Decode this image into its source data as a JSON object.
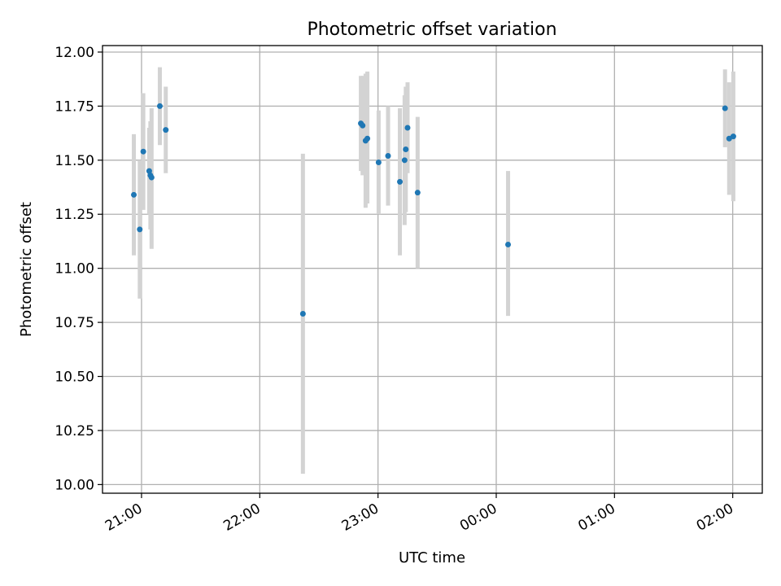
{
  "chart_data": {
    "type": "scatter",
    "title": "Photometric offset variation",
    "xlabel": "UTC time",
    "ylabel": "Photometric offset",
    "x_axis": "time",
    "xlim_hours": [
      20.67,
      26.25
    ],
    "ylim": [
      9.96,
      12.03
    ],
    "grid": true,
    "x_ticks": [
      {
        "hour": 21,
        "label": "21:00"
      },
      {
        "hour": 22,
        "label": "22:00"
      },
      {
        "hour": 23,
        "label": "23:00"
      },
      {
        "hour": 24,
        "label": "00:00"
      },
      {
        "hour": 25,
        "label": "01:00"
      },
      {
        "hour": 26,
        "label": "02:00"
      }
    ],
    "y_ticks": [
      {
        "value": 10.0,
        "label": "10.00"
      },
      {
        "value": 10.25,
        "label": "10.25"
      },
      {
        "value": 10.5,
        "label": "10.50"
      },
      {
        "value": 10.75,
        "label": "10.75"
      },
      {
        "value": 11.0,
        "label": "11.00"
      },
      {
        "value": 11.25,
        "label": "11.25"
      },
      {
        "value": 11.5,
        "label": "11.50"
      },
      {
        "value": 11.75,
        "label": "11.75"
      },
      {
        "value": 12.0,
        "label": "12.00"
      }
    ],
    "colors": {
      "point": "#1f77b4",
      "error_bar": "#d3d3d3",
      "grid": "#b0b0b0"
    },
    "points": [
      {
        "t": "20:56",
        "hour": 20.935,
        "y": 11.34,
        "ylo": 11.06,
        "yhi": 11.62
      },
      {
        "t": "20:59",
        "hour": 20.985,
        "y": 11.18,
        "ylo": 10.86,
        "yhi": 11.5
      },
      {
        "t": "21:01",
        "hour": 21.015,
        "y": 11.54,
        "ylo": 11.27,
        "yhi": 11.81
      },
      {
        "t": "21:04",
        "hour": 21.065,
        "y": 11.45,
        "ylo": 11.25,
        "yhi": 11.65
      },
      {
        "t": "21:04",
        "hour": 21.075,
        "y": 11.43,
        "ylo": 11.18,
        "yhi": 11.68
      },
      {
        "t": "21:05",
        "hour": 21.085,
        "y": 11.42,
        "ylo": 11.09,
        "yhi": 11.74
      },
      {
        "t": "21:09",
        "hour": 21.155,
        "y": 11.75,
        "ylo": 11.57,
        "yhi": 11.93
      },
      {
        "t": "21:12",
        "hour": 21.205,
        "y": 11.64,
        "ylo": 11.44,
        "yhi": 11.84
      },
      {
        "t": "22:22",
        "hour": 22.365,
        "y": 10.79,
        "ylo": 10.05,
        "yhi": 11.53
      },
      {
        "t": "22:51",
        "hour": 22.855,
        "y": 11.67,
        "ylo": 11.45,
        "yhi": 11.89
      },
      {
        "t": "22:52",
        "hour": 22.87,
        "y": 11.66,
        "ylo": 11.43,
        "yhi": 11.89
      },
      {
        "t": "22:53",
        "hour": 22.895,
        "y": 11.59,
        "ylo": 11.28,
        "yhi": 11.9
      },
      {
        "t": "22:54",
        "hour": 22.91,
        "y": 11.6,
        "ylo": 11.3,
        "yhi": 11.91
      },
      {
        "t": "23:00",
        "hour": 23.005,
        "y": 11.49,
        "ylo": 11.25,
        "yhi": 11.73
      },
      {
        "t": "23:05",
        "hour": 23.085,
        "y": 11.52,
        "ylo": 11.29,
        "yhi": 11.75
      },
      {
        "t": "23:11",
        "hour": 23.185,
        "y": 11.4,
        "ylo": 11.06,
        "yhi": 11.74
      },
      {
        "t": "23:13",
        "hour": 23.225,
        "y": 11.5,
        "ylo": 11.2,
        "yhi": 11.8
      },
      {
        "t": "23:14",
        "hour": 23.235,
        "y": 11.55,
        "ylo": 11.26,
        "yhi": 11.84
      },
      {
        "t": "23:15",
        "hour": 23.25,
        "y": 11.65,
        "ylo": 11.44,
        "yhi": 11.86
      },
      {
        "t": "23:20",
        "hour": 23.335,
        "y": 11.35,
        "ylo": 11.0,
        "yhi": 11.7
      },
      {
        "t": "00:06",
        "hour": 24.1,
        "y": 11.11,
        "ylo": 10.78,
        "yhi": 11.45
      },
      {
        "t": "01:56",
        "hour": 25.935,
        "y": 11.74,
        "ylo": 11.56,
        "yhi": 11.92
      },
      {
        "t": "01:58",
        "hour": 25.97,
        "y": 11.6,
        "ylo": 11.34,
        "yhi": 11.86
      },
      {
        "t": "02:00",
        "hour": 26.005,
        "y": 11.61,
        "ylo": 11.31,
        "yhi": 11.91
      }
    ]
  }
}
